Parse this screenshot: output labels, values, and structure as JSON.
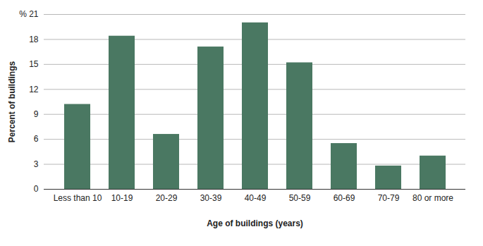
{
  "chart_data": {
    "type": "bar",
    "x_label": "Age of buildings (years)",
    "y_label": "Percent of buildings",
    "categories": [
      "Less than 10",
      "10-19",
      "20-29",
      "30-39",
      "40-49",
      "50-59",
      "60-69",
      "70-79",
      "80 or more"
    ],
    "values": [
      10.2,
      18.4,
      6.6,
      17.1,
      20.0,
      15.2,
      5.5,
      2.8,
      4.0
    ],
    "color": "#4a7862",
    "ylim": [
      0,
      21
    ],
    "yticks": [
      0,
      3,
      6,
      9,
      12,
      15,
      18,
      {
        "value": 21,
        "label": "% 21"
      }
    ],
    "grid": true
  }
}
